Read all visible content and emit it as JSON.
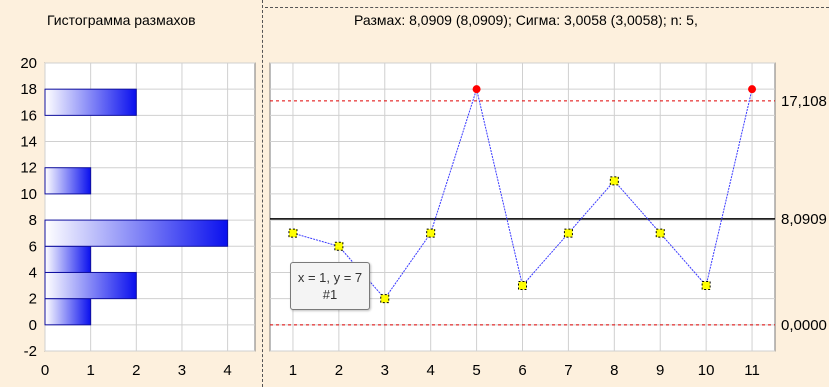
{
  "histogram": {
    "title": "Гистограмма размахов",
    "chart_data": {
      "type": "bar",
      "orientation": "horizontal",
      "bins": [
        {
          "from": 0,
          "to": 2,
          "count": 1
        },
        {
          "from": 2,
          "to": 4,
          "count": 2
        },
        {
          "from": 4,
          "to": 6,
          "count": 1
        },
        {
          "from": 6,
          "to": 8,
          "count": 4
        },
        {
          "from": 10,
          "to": 12,
          "count": 1
        },
        {
          "from": 16,
          "to": 18,
          "count": 2
        }
      ],
      "xlim": [
        0,
        4.6
      ],
      "ylim": [
        -2,
        20
      ],
      "x_ticks": [
        "0",
        "1",
        "2",
        "3",
        "4"
      ],
      "y_ticks": [
        "-2",
        "0",
        "2",
        "4",
        "6",
        "8",
        "10",
        "12",
        "14",
        "16",
        "18",
        "20"
      ],
      "grid": true,
      "colors": {
        "bar_light": "#ffffff",
        "bar_dark": "#0a10ee",
        "bar_border": "#1010a0"
      }
    }
  },
  "control": {
    "title": "Размах: 8,0909 (8,0909); Сигма: 3,0058 (3,0058); n: 5,",
    "chart_data": {
      "type": "line",
      "x": [
        1,
        2,
        3,
        4,
        5,
        6,
        7,
        8,
        9,
        10,
        11
      ],
      "y": [
        7,
        6,
        2,
        7,
        18,
        3,
        7,
        11,
        7,
        3,
        18
      ],
      "out_of_control": [
        false,
        false,
        false,
        false,
        true,
        false,
        false,
        false,
        false,
        false,
        true
      ],
      "center_line": 8.0909,
      "ucl": 17.108,
      "lcl": 0,
      "limit_labels": {
        "ucl": "17,108",
        "center": "8,0909",
        "lcl": "0,0000"
      },
      "xlim": [
        0.5,
        11.5
      ],
      "ylim": [
        -2,
        20
      ],
      "x_ticks": [
        "1",
        "2",
        "3",
        "4",
        "5",
        "6",
        "7",
        "8",
        "9",
        "10",
        "11"
      ],
      "grid": true,
      "colors": {
        "line": "#3a3aff",
        "point_fill": "#ffff00",
        "point_border": "#000000",
        "out_point": "#ff0000",
        "limit_line": "#e00000",
        "center_line": "#000000"
      }
    }
  },
  "tooltip": {
    "line1": "x = 1, y = 7",
    "line2": "#1"
  }
}
